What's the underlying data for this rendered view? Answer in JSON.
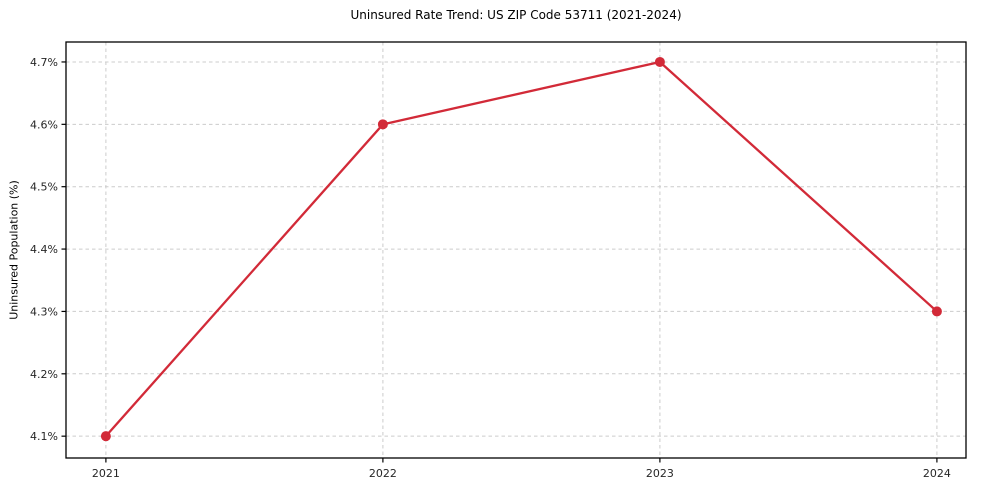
{
  "chart_data": {
    "type": "line",
    "title": "Uninsured Rate Trend: US ZIP Code 53711 (2021-2024)",
    "xlabel": "",
    "ylabel": "Uninsured Population (%)",
    "x": [
      2021,
      2022,
      2023,
      2024
    ],
    "x_tick_labels": [
      "2021",
      "2022",
      "2023",
      "2024"
    ],
    "values": [
      4.1,
      4.6,
      4.7,
      4.3
    ],
    "y_tick_values": [
      4.1,
      4.2,
      4.3,
      4.4,
      4.5,
      4.6,
      4.7
    ],
    "y_tick_labels": [
      "4.1%",
      "4.2%",
      "4.3%",
      "4.4%",
      "4.5%",
      "4.6%",
      "4.7%"
    ],
    "xlim": [
      2020.856,
      2024.105
    ],
    "ylim": [
      4.065,
      4.732
    ],
    "grid": true,
    "grid_style": "dashed",
    "legend": "none",
    "marker": "circle",
    "colors": {
      "line": "#d22a38",
      "marker": "#d22a38",
      "grid": "#cccccc",
      "axis": "#000000",
      "tick_text": "#262626",
      "background": "#ffffff"
    }
  }
}
